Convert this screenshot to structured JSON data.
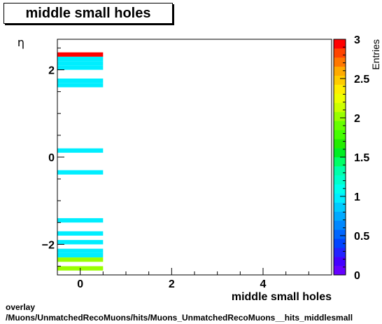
{
  "title": "middle small holes",
  "footer": {
    "line1": "overlay",
    "line2": "/Muons/UnmatchedRecoMuons/hits/Muons_UnmatchedRecoMuons__hits_middlesmall"
  },
  "chart_data": {
    "type": "heatmap",
    "title": "middle small holes",
    "xlabel": "middle small holes",
    "ylabel": "η",
    "zlabel": "Entries",
    "xlim": [
      -0.5,
      5.5
    ],
    "ylim": [
      -2.7,
      2.7
    ],
    "zlim": [
      0,
      3
    ],
    "x_ticks": [
      "0",
      "2",
      "4"
    ],
    "y_ticks": [
      "−2",
      "0",
      "2"
    ],
    "z_ticks": [
      "0",
      "0.5",
      "1",
      "1.5",
      "2",
      "2.5",
      "3"
    ],
    "cells": [
      {
        "x": [
          -0.5,
          0.5
        ],
        "y": [
          2.3,
          2.4
        ],
        "value": 3
      },
      {
        "x": [
          -0.5,
          0.5
        ],
        "y": [
          2.2,
          2.3
        ],
        "value": 1
      },
      {
        "x": [
          -0.5,
          0.5
        ],
        "y": [
          2.1,
          2.2
        ],
        "value": 1
      },
      {
        "x": [
          -0.5,
          0.5
        ],
        "y": [
          2.0,
          2.1
        ],
        "value": 1
      },
      {
        "x": [
          -0.5,
          0.5
        ],
        "y": [
          1.6,
          1.7
        ],
        "value": 1
      },
      {
        "x": [
          -0.5,
          0.5
        ],
        "y": [
          1.7,
          1.8
        ],
        "value": 1
      },
      {
        "x": [
          -0.5,
          0.5
        ],
        "y": [
          0.1,
          0.2
        ],
        "value": 1
      },
      {
        "x": [
          -0.5,
          0.5
        ],
        "y": [
          -0.4,
          -0.3
        ],
        "value": 1
      },
      {
        "x": [
          -0.5,
          0.5
        ],
        "y": [
          -1.5,
          -1.4
        ],
        "value": 1
      },
      {
        "x": [
          -0.5,
          0.5
        ],
        "y": [
          -1.8,
          -1.7
        ],
        "value": 1
      },
      {
        "x": [
          -0.5,
          0.5
        ],
        "y": [
          -2.0,
          -1.9
        ],
        "value": 1
      },
      {
        "x": [
          -0.5,
          0.5
        ],
        "y": [
          -2.2,
          -2.1
        ],
        "value": 1
      },
      {
        "x": [
          -0.5,
          0.5
        ],
        "y": [
          -2.3,
          -2.2
        ],
        "value": 1
      },
      {
        "x": [
          -0.5,
          0.5
        ],
        "y": [
          -2.4,
          -2.3
        ],
        "value": 2
      },
      {
        "x": [
          -0.5,
          0.5
        ],
        "y": [
          -2.6,
          -2.5
        ],
        "value": 2
      }
    ],
    "palette": [
      "#6600ff",
      "#4400ff",
      "#2222ff",
      "#0044ff",
      "#0066ff",
      "#0088ff",
      "#00aaff",
      "#00ccff",
      "#00eeff",
      "#00ffee",
      "#00ffcc",
      "#00ffaa",
      "#00ff66",
      "#00ee22",
      "#22ee00",
      "#44ff00",
      "#66ff00",
      "#99ff00",
      "#ccff00",
      "#eeff00",
      "#ffee00",
      "#ffcc00",
      "#ffaa00",
      "#ff7700",
      "#ff4400",
      "#ff0000"
    ]
  }
}
